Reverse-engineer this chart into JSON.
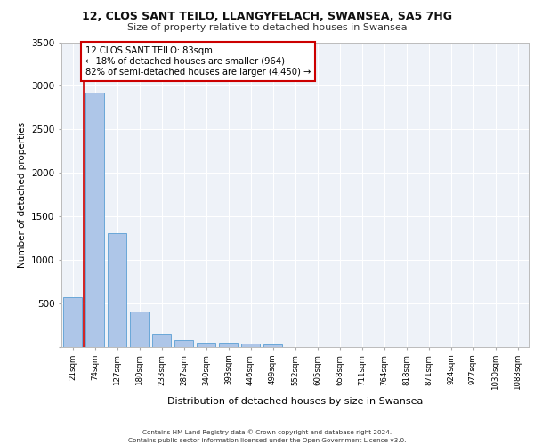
{
  "title1": "12, CLOS SANT TEILO, LLANGYFELACH, SWANSEA, SA5 7HG",
  "title2": "Size of property relative to detached houses in Swansea",
  "xlabel": "Distribution of detached houses by size in Swansea",
  "ylabel": "Number of detached properties",
  "categories": [
    "21sqm",
    "74sqm",
    "127sqm",
    "180sqm",
    "233sqm",
    "287sqm",
    "340sqm",
    "393sqm",
    "446sqm",
    "499sqm",
    "552sqm",
    "605sqm",
    "658sqm",
    "711sqm",
    "764sqm",
    "818sqm",
    "871sqm",
    "924sqm",
    "977sqm",
    "1030sqm",
    "1083sqm"
  ],
  "values": [
    570,
    2920,
    1310,
    410,
    155,
    80,
    55,
    48,
    42,
    35,
    0,
    0,
    0,
    0,
    0,
    0,
    0,
    0,
    0,
    0,
    0
  ],
  "bar_color": "#aec6e8",
  "bar_edge_color": "#5a9fd4",
  "property_line_x": 0.5,
  "property_line_color": "#cc0000",
  "annotation_text": "12 CLOS SANT TEILO: 83sqm\n← 18% of detached houses are smaller (964)\n82% of semi-detached houses are larger (4,450) →",
  "annotation_box_color": "#cc0000",
  "background_color": "#eef2f8",
  "grid_color": "#ffffff",
  "ylim": [
    0,
    3500
  ],
  "yticks": [
    0,
    500,
    1000,
    1500,
    2000,
    2500,
    3000,
    3500
  ],
  "footer1": "Contains HM Land Registry data © Crown copyright and database right 2024.",
  "footer2": "Contains public sector information licensed under the Open Government Licence v3.0."
}
